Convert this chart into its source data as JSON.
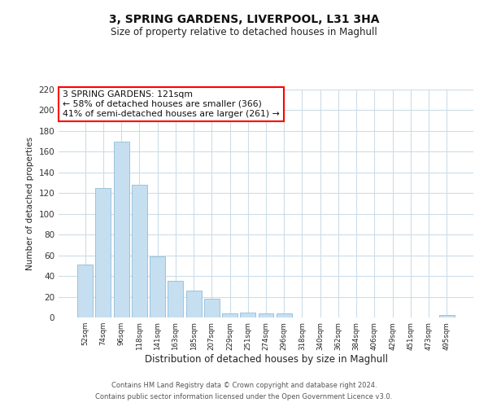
{
  "title": "3, SPRING GARDENS, LIVERPOOL, L31 3HA",
  "subtitle": "Size of property relative to detached houses in Maghull",
  "xlabel": "Distribution of detached houses by size in Maghull",
  "ylabel": "Number of detached properties",
  "bar_color": "#c5dff0",
  "bar_edge_color": "#90bcd8",
  "categories": [
    "52sqm",
    "74sqm",
    "96sqm",
    "118sqm",
    "141sqm",
    "163sqm",
    "185sqm",
    "207sqm",
    "229sqm",
    "251sqm",
    "274sqm",
    "296sqm",
    "318sqm",
    "340sqm",
    "362sqm",
    "384sqm",
    "406sqm",
    "429sqm",
    "451sqm",
    "473sqm",
    "495sqm"
  ],
  "values": [
    51,
    125,
    170,
    128,
    59,
    35,
    26,
    18,
    4,
    5,
    4,
    4,
    0,
    0,
    0,
    0,
    0,
    0,
    0,
    0,
    2
  ],
  "ylim": [
    0,
    220
  ],
  "yticks": [
    0,
    20,
    40,
    60,
    80,
    100,
    120,
    140,
    160,
    180,
    200,
    220
  ],
  "annotation_box_text": "3 SPRING GARDENS: 121sqm\n← 58% of detached houses are smaller (366)\n41% of semi-detached houses are larger (261) →",
  "footer_line1": "Contains HM Land Registry data © Crown copyright and database right 2024.",
  "footer_line2": "Contains public sector information licensed under the Open Government Licence v3.0.",
  "background_color": "#ffffff",
  "grid_color": "#ccdde8"
}
